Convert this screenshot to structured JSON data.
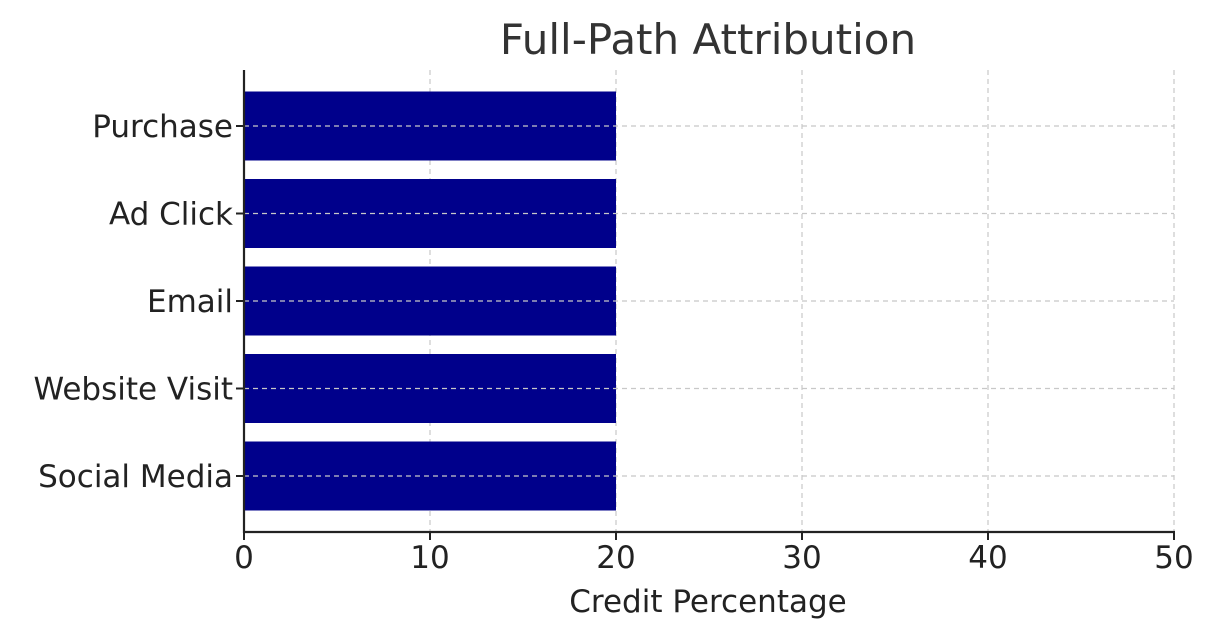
{
  "chart_data": {
    "type": "bar",
    "orientation": "horizontal",
    "title": "Full-Path Attribution",
    "xlabel": "Credit Percentage",
    "ylabel": "",
    "categories": [
      "Social Media",
      "Website Visit",
      "Email",
      "Ad Click",
      "Purchase"
    ],
    "values": [
      20,
      20,
      20,
      20,
      20
    ],
    "xlim": [
      0,
      50
    ],
    "x_ticks": [
      "0",
      "10",
      "20",
      "30",
      "40",
      "50"
    ],
    "grid": true,
    "grid_style": "dashed",
    "legend": "none",
    "colors": {
      "bar": "#00008b",
      "grid": "#c8c8c8",
      "axis": "#222222",
      "title": "#333333"
    }
  }
}
